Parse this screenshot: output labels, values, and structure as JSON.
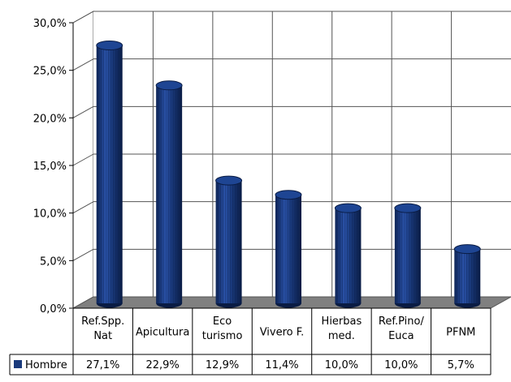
{
  "chart_data": {
    "type": "bar",
    "title": "",
    "xlabel": "",
    "ylabel": "",
    "ylim": [
      0,
      30
    ],
    "y_ticks": [
      "0,0%",
      "5,0%",
      "10,0%",
      "15,0%",
      "20,0%",
      "25,0%",
      "30,0%"
    ],
    "grid": true,
    "bar_shape": "3d-cylinder",
    "categories": [
      [
        "Ref.Spp.",
        "Nat"
      ],
      [
        "Apicultura"
      ],
      [
        "Eco",
        "turismo"
      ],
      [
        "Vivero F."
      ],
      [
        "Hierbas",
        "med."
      ],
      [
        "Ref.Pino/",
        "Euca"
      ],
      [
        "PFNM"
      ]
    ],
    "series": [
      {
        "name": "Hombre",
        "values": [
          27.1,
          22.9,
          12.9,
          11.4,
          10.0,
          10.0,
          5.7
        ],
        "labels": [
          "27,1%",
          "22,9%",
          "12,9%",
          "11,4%",
          "10,0%",
          "10,0%",
          "5,7%"
        ],
        "color": "#1a3a7c"
      }
    ],
    "legend": "data-table-bottom-left",
    "data_table": true
  }
}
